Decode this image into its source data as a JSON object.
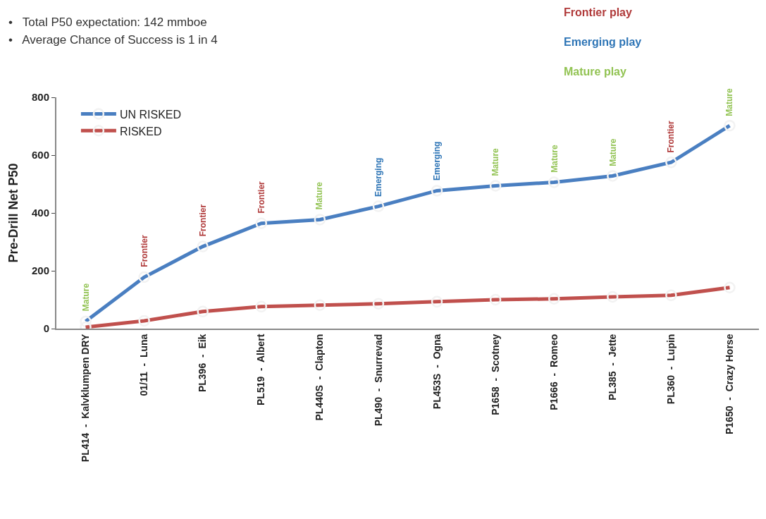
{
  "chart_data": {
    "type": "line",
    "ylabel": "Pre-Drill Net P50",
    "categories": [
      "PL414  -  Kalvklumpen DRY",
      "01/11  -  Luna",
      "PL396  -  Eik",
      "PL519  -  Albert",
      "PL440S  -  Clapton",
      "PL490  -  Snurrevad",
      "PL453S  -  Ogna",
      "P1658  -  Scotney",
      "P1666  -  Romeo",
      "PL385  -  Jette",
      "PL360  -  Lupin",
      "P1650  -  Crazy Horse"
    ],
    "series": [
      {
        "name": "UN RISKED",
        "color": "#4a7fc1",
        "values": [
          25,
          178,
          284,
          364,
          377,
          423,
          477,
          494,
          506,
          528,
          575,
          702
        ]
      },
      {
        "name": "RISKED",
        "color": "#c0504d",
        "values": [
          5,
          27,
          59,
          76,
          81,
          86,
          93,
          100,
          103,
          110,
          115,
          142
        ]
      }
    ],
    "ylim": [
      0,
      800
    ],
    "yticks": [
      0,
      200,
      400,
      600,
      800
    ],
    "legend": "top left",
    "marker": "circle",
    "line_style": "solid",
    "annotations": [
      "•   Total P50 expectation: 142 mmboe",
      "•   Average Chance of Success is 1 in 4",
      "Frontier play",
      "Emerging play",
      "Mature play",
      {
        "text": "Mature",
        "x": "PL414  -  Kalvklumpen DRY",
        "y": 25
      },
      {
        "text": "Frontier",
        "x": "01/11  -  Luna",
        "y": 178
      },
      {
        "text": "Frontier",
        "x": "PL396  -  Eik",
        "y": 284
      },
      {
        "text": "Frontier",
        "x": "PL519  -  Albert",
        "y": 364
      },
      {
        "text": "Mature",
        "x": "PL440S  -  Clapton",
        "y": 377
      },
      {
        "text": "Emerging",
        "x": "PL490  -  Snurrevad",
        "y": 423
      },
      {
        "text": "Emerging",
        "x": "PL453S  -  Ogna",
        "y": 477
      },
      {
        "text": "Mature",
        "x": "P1658  -  Scotney",
        "y": 494
      },
      {
        "text": "Mature",
        "x": "P1666  -  Romeo",
        "y": 506
      },
      {
        "text": "Mature",
        "x": "PL385  -  Jette",
        "y": 528
      },
      {
        "text": "Frontier",
        "x": "PL360  -  Lupin",
        "y": 575
      },
      {
        "text": "Mature",
        "x": "P1650  -  Crazy Horse",
        "y": 702
      }
    ]
  }
}
